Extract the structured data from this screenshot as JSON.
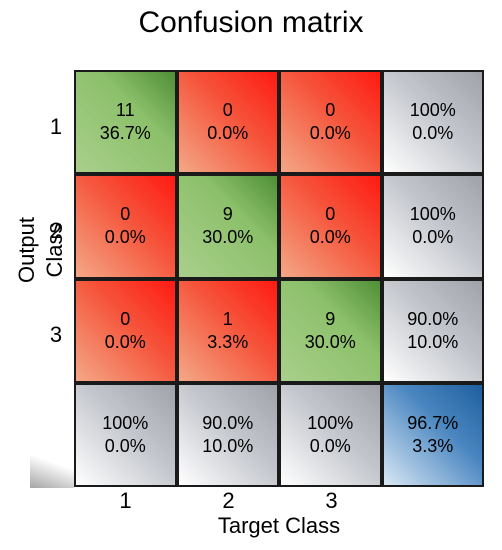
{
  "chart_data": {
    "type": "heatmap",
    "title": "Confusion matrix",
    "xlabel": "Target Class",
    "ylabel": "Output Class",
    "row_labels": [
      "1",
      "2",
      "3"
    ],
    "col_labels": [
      "1",
      "2",
      "3"
    ],
    "counts": [
      [
        11,
        0,
        0
      ],
      [
        0,
        9,
        0
      ],
      [
        0,
        1,
        9
      ]
    ],
    "cells": [
      [
        {
          "line1": "11",
          "line2": "36.7%",
          "kind": "correct"
        },
        {
          "line1": "0",
          "line2": "0.0%",
          "kind": "error"
        },
        {
          "line1": "0",
          "line2": "0.0%",
          "kind": "error"
        },
        {
          "line1": "100%",
          "line2": "0.0%",
          "kind": "summary"
        }
      ],
      [
        {
          "line1": "0",
          "line2": "0.0%",
          "kind": "error"
        },
        {
          "line1": "9",
          "line2": "30.0%",
          "kind": "correct"
        },
        {
          "line1": "0",
          "line2": "0.0%",
          "kind": "error"
        },
        {
          "line1": "100%",
          "line2": "0.0%",
          "kind": "summary"
        }
      ],
      [
        {
          "line1": "0",
          "line2": "0.0%",
          "kind": "error"
        },
        {
          "line1": "1",
          "line2": "3.3%",
          "kind": "error"
        },
        {
          "line1": "9",
          "line2": "30.0%",
          "kind": "correct"
        },
        {
          "line1": "90.0%",
          "line2": "10.0%",
          "kind": "summary"
        }
      ],
      [
        {
          "line1": "100%",
          "line2": "0.0%",
          "kind": "summary"
        },
        {
          "line1": "90.0%",
          "line2": "10.0%",
          "kind": "summary"
        },
        {
          "line1": "100%",
          "line2": "0.0%",
          "kind": "summary"
        },
        {
          "line1": "96.7%",
          "line2": "3.3%",
          "kind": "overall"
        }
      ]
    ],
    "colors": {
      "correct": "#7fb45a",
      "error": "#ef3b2c",
      "summary": "#b9bcc2",
      "overall": "#3f7fbe",
      "grid_line": "#1a1a1a"
    }
  }
}
